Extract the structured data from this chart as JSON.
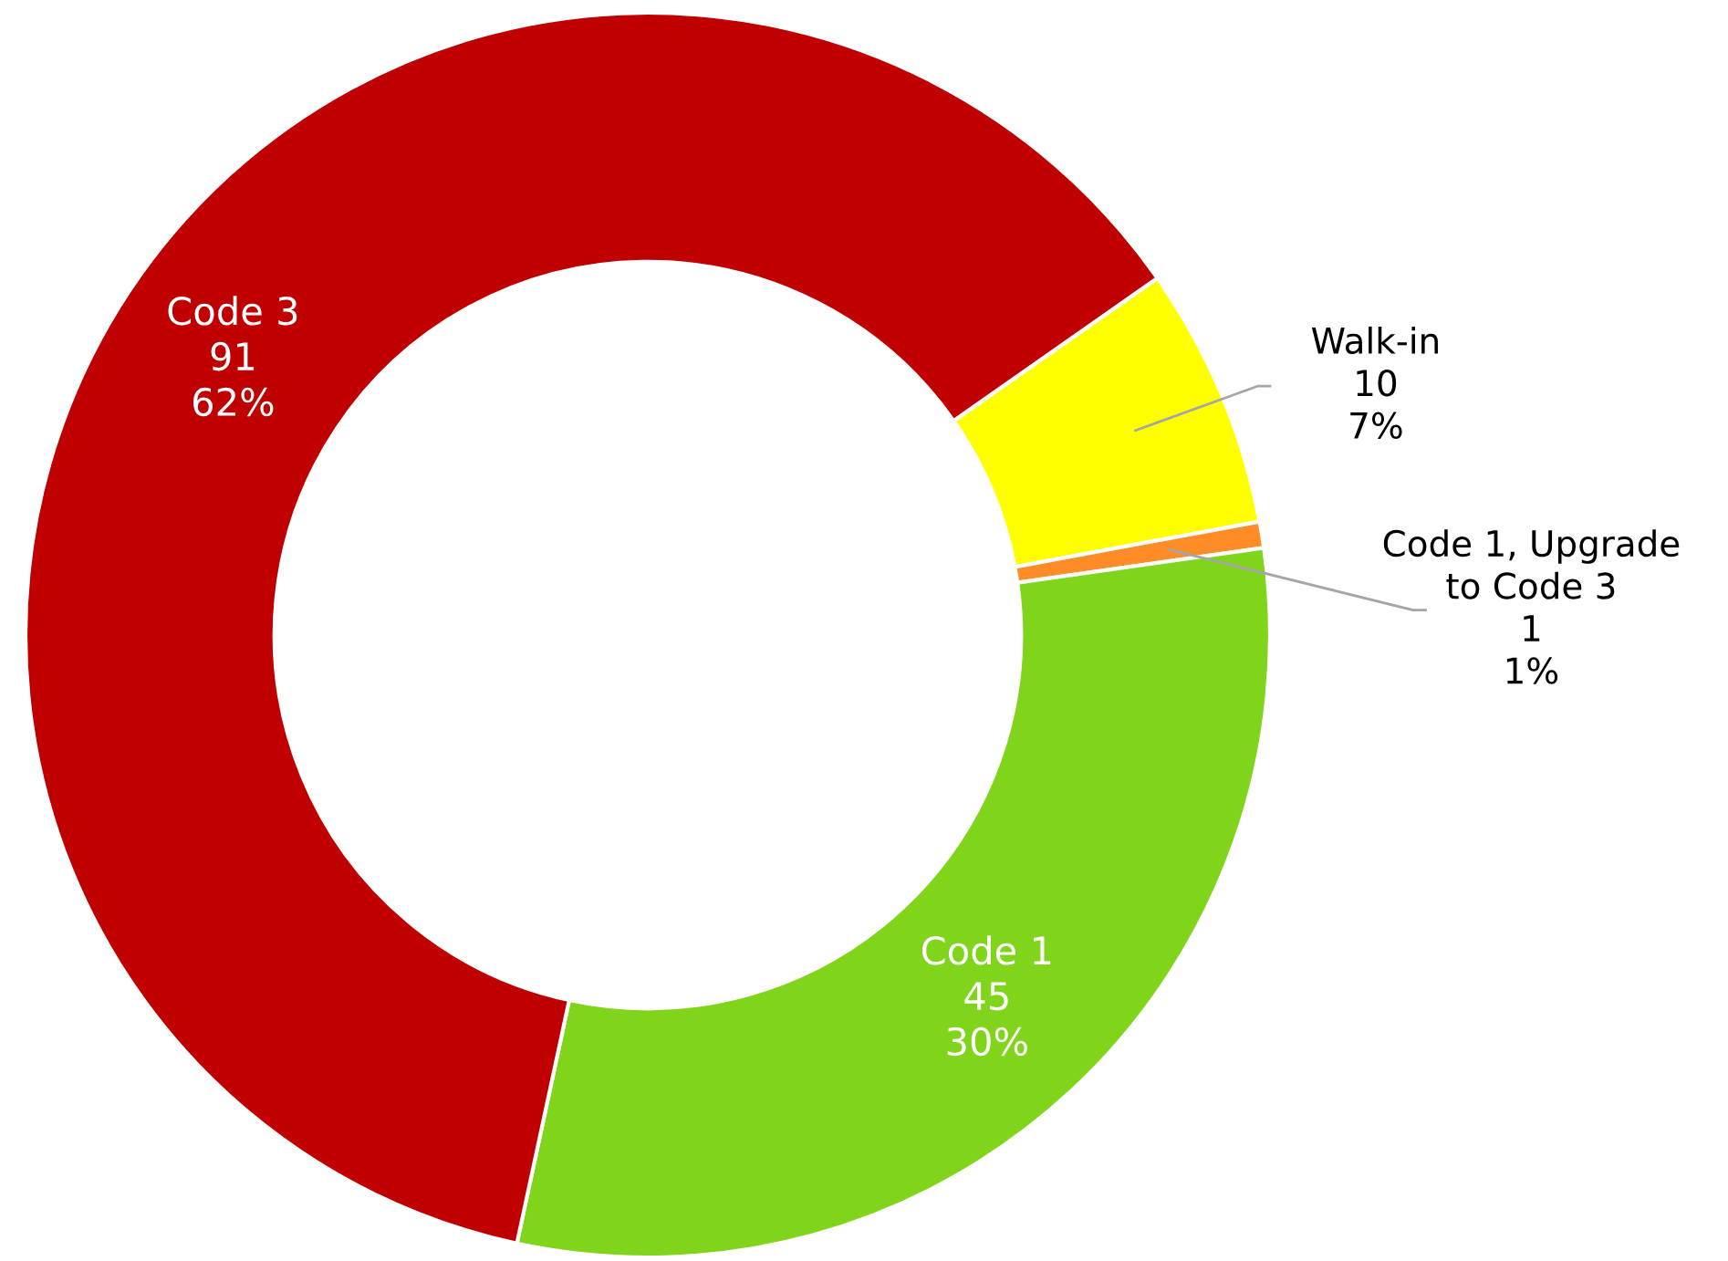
{
  "chart_data": {
    "type": "donut",
    "categories": [
      "Walk-in",
      "Code 1, Upgrade\nto Code 3",
      "Code 1",
      "Code 3"
    ],
    "values": [
      10,
      1,
      45,
      91
    ],
    "colors": [
      "#ffff00",
      "#ff8c26",
      "#80d41a",
      "#c00000"
    ],
    "value_labels": [
      "10\n7%",
      "1\n1%",
      "45\n30%",
      "91\n62%"
    ],
    "legend": false
  }
}
